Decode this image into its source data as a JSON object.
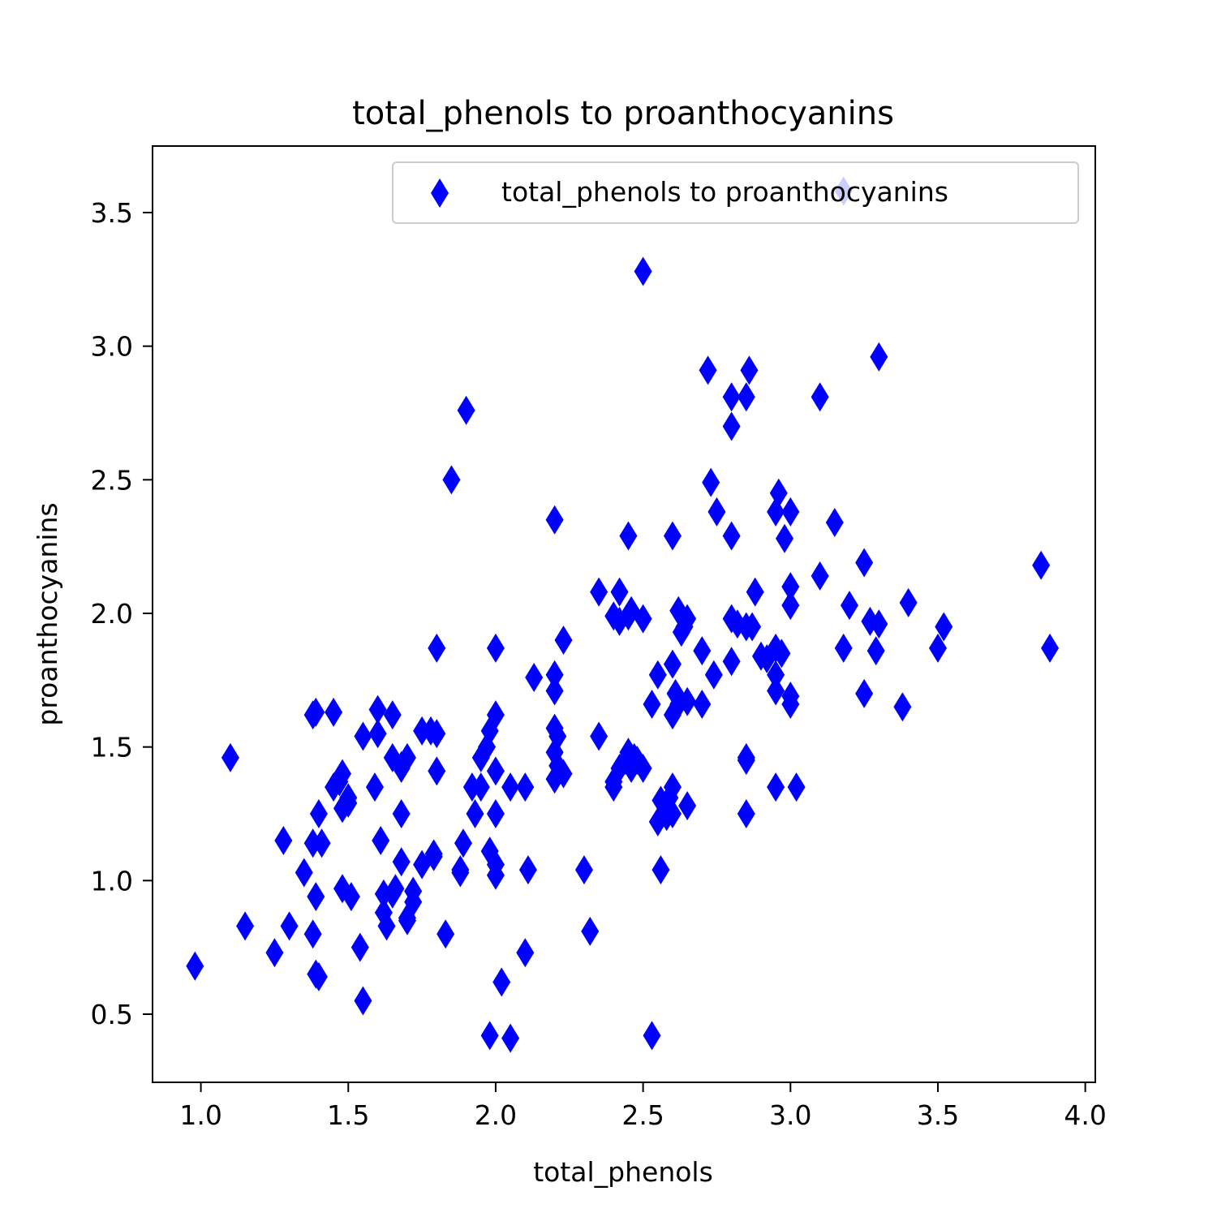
{
  "chart_data": {
    "type": "scatter",
    "title": "total_phenols to proanthocyanins",
    "xlabel": "total_phenols",
    "ylabel": "proanthocyanins",
    "xlim": [
      0.836,
      4.034
    ],
    "ylim": [
      0.245,
      3.749
    ],
    "xticks": [
      1.0,
      1.5,
      2.0,
      2.5,
      3.0,
      3.5,
      4.0
    ],
    "xtick_labels": [
      "1.0",
      "1.5",
      "2.0",
      "2.5",
      "3.0",
      "3.5",
      "4.0"
    ],
    "yticks": [
      0.5,
      1.0,
      1.5,
      2.0,
      2.5,
      3.0,
      3.5
    ],
    "ytick_labels": [
      "0.5",
      "1.0",
      "1.5",
      "2.0",
      "2.5",
      "3.0",
      "3.5"
    ],
    "grid": false,
    "legend_position": "upper right",
    "marker": "thin-diamond",
    "series": [
      {
        "name": "total_phenols to proanthocyanins",
        "color": "#0000ff",
        "points": [
          [
            0.98,
            0.68
          ],
          [
            1.1,
            1.46
          ],
          [
            1.15,
            0.83
          ],
          [
            1.25,
            0.73
          ],
          [
            1.28,
            1.15
          ],
          [
            1.3,
            0.83
          ],
          [
            1.35,
            1.03
          ],
          [
            1.38,
            1.62
          ],
          [
            1.39,
            1.63
          ],
          [
            1.38,
            1.14
          ],
          [
            1.38,
            0.8
          ],
          [
            1.39,
            0.94
          ],
          [
            1.39,
            0.65
          ],
          [
            1.4,
            0.64
          ],
          [
            1.4,
            1.25
          ],
          [
            1.41,
            1.14
          ],
          [
            1.45,
            1.63
          ],
          [
            1.45,
            1.35
          ],
          [
            1.47,
            1.37
          ],
          [
            1.48,
            1.4
          ],
          [
            1.48,
            1.27
          ],
          [
            1.48,
            0.97
          ],
          [
            1.5,
            1.31
          ],
          [
            1.5,
            1.29
          ],
          [
            1.51,
            0.94
          ],
          [
            1.54,
            0.75
          ],
          [
            1.55,
            0.55
          ],
          [
            1.55,
            1.54
          ],
          [
            1.59,
            1.35
          ],
          [
            1.6,
            1.64
          ],
          [
            1.6,
            1.55
          ],
          [
            1.61,
            1.15
          ],
          [
            1.62,
            0.95
          ],
          [
            1.62,
            0.88
          ],
          [
            1.63,
            0.83
          ],
          [
            1.65,
            0.95
          ],
          [
            1.65,
            1.46
          ],
          [
            1.65,
            1.62
          ],
          [
            1.66,
            0.97
          ],
          [
            1.68,
            1.43
          ],
          [
            1.68,
            1.42
          ],
          [
            1.68,
            1.25
          ],
          [
            1.68,
            1.07
          ],
          [
            1.7,
            1.46
          ],
          [
            1.7,
            0.86
          ],
          [
            1.7,
            0.85
          ],
          [
            1.72,
            0.92
          ],
          [
            1.72,
            0.96
          ],
          [
            1.75,
            1.56
          ],
          [
            1.75,
            1.06
          ],
          [
            1.78,
            1.56
          ],
          [
            1.79,
            1.1
          ],
          [
            1.79,
            1.09
          ],
          [
            1.8,
            1.41
          ],
          [
            1.8,
            1.55
          ],
          [
            1.8,
            1.87
          ],
          [
            1.83,
            0.8
          ],
          [
            1.85,
            2.5
          ],
          [
            1.88,
            1.04
          ],
          [
            1.88,
            1.03
          ],
          [
            1.89,
            1.14
          ],
          [
            1.9,
            2.76
          ],
          [
            1.92,
            1.35
          ],
          [
            1.93,
            1.25
          ],
          [
            1.95,
            1.35
          ],
          [
            1.95,
            1.46
          ],
          [
            1.97,
            1.5
          ],
          [
            1.98,
            1.56
          ],
          [
            1.98,
            1.11
          ],
          [
            1.98,
            0.42
          ],
          [
            2.0,
            1.41
          ],
          [
            2.0,
            1.25
          ],
          [
            2.0,
            1.62
          ],
          [
            2.0,
            1.87
          ],
          [
            2.0,
            1.02
          ],
          [
            2.0,
            1.06
          ],
          [
            2.02,
            0.62
          ],
          [
            2.05,
            1.35
          ],
          [
            2.05,
            0.41
          ],
          [
            2.1,
            1.35
          ],
          [
            2.1,
            0.73
          ],
          [
            2.11,
            1.04
          ],
          [
            2.13,
            1.76
          ],
          [
            2.2,
            1.77
          ],
          [
            2.2,
            1.71
          ],
          [
            2.2,
            2.35
          ],
          [
            2.2,
            1.48
          ],
          [
            2.2,
            1.38
          ],
          [
            2.2,
            1.57
          ],
          [
            2.21,
            1.54
          ],
          [
            2.21,
            1.43
          ],
          [
            2.23,
            1.4
          ],
          [
            2.23,
            1.9
          ],
          [
            2.3,
            1.04
          ],
          [
            2.32,
            0.81
          ],
          [
            2.35,
            1.54
          ],
          [
            2.35,
            2.08
          ],
          [
            2.4,
            1.35
          ],
          [
            2.4,
            1.37
          ],
          [
            2.4,
            1.99
          ],
          [
            2.42,
            2.08
          ],
          [
            2.42,
            1.42
          ],
          [
            2.42,
            1.97
          ],
          [
            2.44,
            1.45
          ],
          [
            2.45,
            1.48
          ],
          [
            2.45,
            2.29
          ],
          [
            2.45,
            1.99
          ],
          [
            2.46,
            1.42
          ],
          [
            2.46,
            2.01
          ],
          [
            2.47,
            1.46
          ],
          [
            2.48,
            1.45
          ],
          [
            2.5,
            1.98
          ],
          [
            2.5,
            1.42
          ],
          [
            2.5,
            3.28
          ],
          [
            2.53,
            0.42
          ],
          [
            2.53,
            1.66
          ],
          [
            2.55,
            1.77
          ],
          [
            2.55,
            1.22
          ],
          [
            2.56,
            1.3
          ],
          [
            2.56,
            1.04
          ],
          [
            2.58,
            1.24
          ],
          [
            2.59,
            1.31
          ],
          [
            2.6,
            1.81
          ],
          [
            2.6,
            1.62
          ],
          [
            2.6,
            2.29
          ],
          [
            2.6,
            1.35
          ],
          [
            2.6,
            1.25
          ],
          [
            2.61,
            1.7
          ],
          [
            2.62,
            1.66
          ],
          [
            2.62,
            2.01
          ],
          [
            2.63,
            1.93
          ],
          [
            2.64,
            1.95
          ],
          [
            2.65,
            1.67
          ],
          [
            2.65,
            1.28
          ],
          [
            2.65,
            1.98
          ],
          [
            2.7,
            1.86
          ],
          [
            2.7,
            1.66
          ],
          [
            2.72,
            2.91
          ],
          [
            2.73,
            2.49
          ],
          [
            2.74,
            1.77
          ],
          [
            2.75,
            2.38
          ],
          [
            2.8,
            2.81
          ],
          [
            2.8,
            2.7
          ],
          [
            2.8,
            2.29
          ],
          [
            2.8,
            1.98
          ],
          [
            2.8,
            1.82
          ],
          [
            2.82,
            1.96
          ],
          [
            2.85,
            1.95
          ],
          [
            2.85,
            2.81
          ],
          [
            2.85,
            1.46
          ],
          [
            2.85,
            1.45
          ],
          [
            2.85,
            1.25
          ],
          [
            2.86,
            2.91
          ],
          [
            2.87,
            1.95
          ],
          [
            2.88,
            2.08
          ],
          [
            2.9,
            1.84
          ],
          [
            2.92,
            1.83
          ],
          [
            2.95,
            1.87
          ],
          [
            2.95,
            1.77
          ],
          [
            2.95,
            1.71
          ],
          [
            2.95,
            2.38
          ],
          [
            2.95,
            1.35
          ],
          [
            2.96,
            2.45
          ],
          [
            2.97,
            1.85
          ],
          [
            2.98,
            2.28
          ],
          [
            3.0,
            2.1
          ],
          [
            3.0,
            2.38
          ],
          [
            3.0,
            2.03
          ],
          [
            3.0,
            1.69
          ],
          [
            3.0,
            1.66
          ],
          [
            3.02,
            1.35
          ],
          [
            3.1,
            2.81
          ],
          [
            3.1,
            2.14
          ],
          [
            3.15,
            2.34
          ],
          [
            3.18,
            3.58
          ],
          [
            3.18,
            1.87
          ],
          [
            3.2,
            2.03
          ],
          [
            3.25,
            2.19
          ],
          [
            3.25,
            1.7
          ],
          [
            3.27,
            1.97
          ],
          [
            3.29,
            1.86
          ],
          [
            3.3,
            1.96
          ],
          [
            3.3,
            2.96
          ],
          [
            3.38,
            1.65
          ],
          [
            3.4,
            2.04
          ],
          [
            3.5,
            1.87
          ],
          [
            3.52,
            1.95
          ],
          [
            3.85,
            2.18
          ],
          [
            3.88,
            1.87
          ]
        ]
      }
    ]
  }
}
